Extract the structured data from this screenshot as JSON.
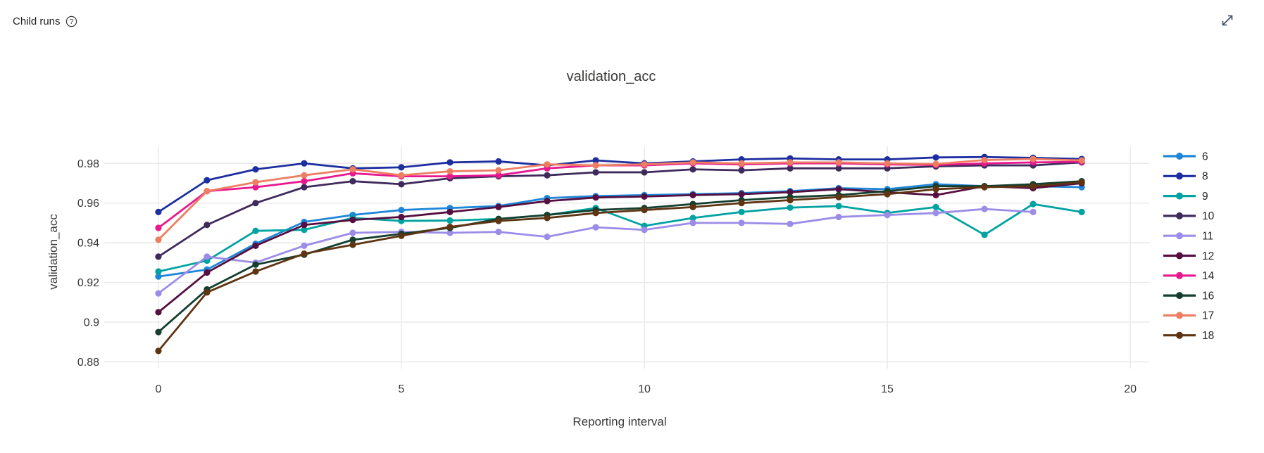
{
  "header": {
    "title": "Child runs",
    "help_icon": "question-mark-circle",
    "expand_icon": "diagonal-expand-arrow"
  },
  "chart_data": {
    "type": "line",
    "title": "validation_acc",
    "xlabel": "Reporting interval",
    "ylabel": "validation_acc",
    "grid": true,
    "legend_position": "right",
    "xlim": [
      -1.115,
      20.39
    ],
    "ylim": [
      0.8766,
      0.9886
    ],
    "x_ticks": [
      0,
      5,
      10,
      15,
      20
    ],
    "x_tick_labels": [
      "0",
      "5",
      "10",
      "15",
      "20"
    ],
    "y_ticks": [
      0.98,
      0.96,
      0.94,
      0.92,
      0.9,
      0.88
    ],
    "y_tick_labels": [
      "0.98",
      "0.96",
      "0.94",
      "0.92",
      "0.9",
      "0.88"
    ],
    "x": [
      0,
      1,
      2,
      3,
      4,
      5,
      6,
      7,
      8,
      9,
      10,
      11,
      12,
      13,
      14,
      15,
      16,
      17,
      18,
      19
    ],
    "series": [
      {
        "name": "6",
        "color": "#1e86d8",
        "values": [
          0.923,
          0.9265,
          0.9395,
          0.9505,
          0.954,
          0.9565,
          0.9575,
          0.9585,
          0.9625,
          0.9635,
          0.964,
          0.9645,
          0.965,
          0.966,
          0.9675,
          0.967,
          0.9695,
          0.9685,
          0.9685,
          0.968
        ]
      },
      {
        "name": "8",
        "color": "#1c2ea0",
        "values": [
          0.9555,
          0.9715,
          0.977,
          0.98,
          0.9775,
          0.978,
          0.9805,
          0.981,
          0.979,
          0.9815,
          0.98,
          0.981,
          0.982,
          0.9825,
          0.982,
          0.982,
          0.983,
          0.9832,
          0.9828,
          0.9822
        ]
      },
      {
        "name": "9",
        "color": "#00a3a1",
        "values": [
          0.9255,
          0.931,
          0.946,
          0.9465,
          0.9525,
          0.951,
          0.9512,
          0.952,
          0.954,
          0.9575,
          0.9485,
          0.9525,
          0.9555,
          0.9577,
          0.9585,
          0.955,
          0.958,
          0.944,
          0.9595,
          0.9555
        ]
      },
      {
        "name": "10",
        "color": "#3f2a5c",
        "values": [
          0.933,
          0.949,
          0.96,
          0.968,
          0.971,
          0.9695,
          0.9725,
          0.9735,
          0.974,
          0.9755,
          0.9755,
          0.977,
          0.9765,
          0.9775,
          0.9775,
          0.9775,
          0.9785,
          0.979,
          0.979,
          0.9805
        ]
      },
      {
        "name": "11",
        "color": "#9c8ce8",
        "values": [
          0.9145,
          0.933,
          0.93,
          0.9385,
          0.945,
          0.9455,
          0.945,
          0.9455,
          0.943,
          0.9478,
          0.9465,
          0.95,
          0.95,
          0.9495,
          0.953,
          0.954,
          0.955,
          0.957,
          0.9555
        ]
      },
      {
        "name": "12",
        "color": "#560f41",
        "values": [
          0.905,
          0.925,
          0.9385,
          0.949,
          0.9515,
          0.953,
          0.9555,
          0.958,
          0.961,
          0.9628,
          0.9633,
          0.964,
          0.9645,
          0.9655,
          0.967,
          0.9655,
          0.964,
          0.9685,
          0.9675,
          0.97
        ]
      },
      {
        "name": "14",
        "color": "#e8188f",
        "values": [
          0.9475,
          0.966,
          0.968,
          0.971,
          0.975,
          0.9735,
          0.9735,
          0.974,
          0.9775,
          0.979,
          0.979,
          0.98,
          0.9795,
          0.98,
          0.98,
          0.9795,
          0.9792,
          0.98,
          0.9805,
          0.9808
        ]
      },
      {
        "name": "16",
        "color": "#143e2e",
        "values": [
          0.895,
          0.9165,
          0.929,
          0.934,
          0.9415,
          0.9445,
          0.9475,
          0.952,
          0.954,
          0.9565,
          0.9575,
          0.9595,
          0.9615,
          0.963,
          0.964,
          0.966,
          0.9685,
          0.9685,
          0.9695,
          0.971
        ]
      },
      {
        "name": "17",
        "color": "#ee7e62",
        "values": [
          0.9415,
          0.966,
          0.9705,
          0.974,
          0.977,
          0.974,
          0.976,
          0.9765,
          0.9795,
          0.979,
          0.9795,
          0.9805,
          0.98,
          0.9805,
          0.9805,
          0.98,
          0.9797,
          0.9817,
          0.9822,
          0.9815
        ]
      },
      {
        "name": "18",
        "color": "#5f3412",
        "values": [
          0.8855,
          0.915,
          0.9255,
          0.9345,
          0.939,
          0.9435,
          0.948,
          0.951,
          0.9525,
          0.955,
          0.9565,
          0.958,
          0.96,
          0.9615,
          0.963,
          0.9645,
          0.967,
          0.968,
          0.9685,
          0.9705
        ]
      }
    ]
  },
  "style": {
    "gridline_color": "#e8e8e8",
    "tick_color": "#353535",
    "title_color": "#3b3a39",
    "expand_icon_color": "#3a4a68",
    "header_color": "#201f1e"
  }
}
